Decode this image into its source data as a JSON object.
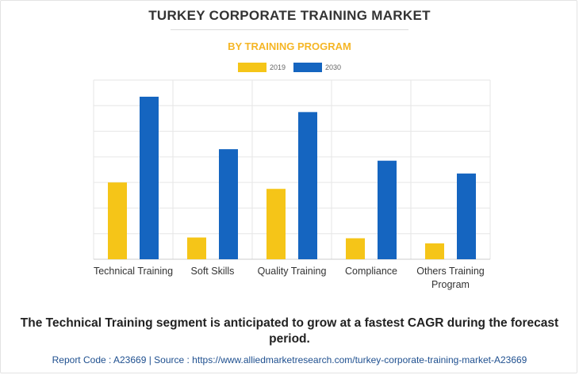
{
  "header": {
    "title": "TURKEY CORPORATE TRAINING MARKET",
    "subtitle": "BY TRAINING PROGRAM"
  },
  "colors": {
    "series_2019": "#f5c518",
    "series_2030": "#1565c0",
    "subtitle": "#f5b626"
  },
  "chart_data": {
    "type": "bar",
    "title": "TURKEY CORPORATE TRAINING MARKET",
    "subtitle": "BY TRAINING PROGRAM",
    "xlabel": "",
    "ylabel": "",
    "categories": [
      "Technical Training",
      "Soft Skills",
      "Quality Training",
      "Compliance",
      "Others Training Program"
    ],
    "category_lines": [
      [
        "Technical Training"
      ],
      [
        "Soft Skills"
      ],
      [
        "Quality Training"
      ],
      [
        "Compliance"
      ],
      [
        "Others Training",
        "Program"
      ]
    ],
    "series": [
      {
        "name": "2019",
        "values": [
          30,
          8.5,
          27.5,
          8.2,
          6.2
        ]
      },
      {
        "name": "2030",
        "values": [
          63.5,
          43,
          57.5,
          38.5,
          33.5
        ]
      }
    ],
    "ylim": [
      0,
      70
    ],
    "y_gridlines": [
      10,
      20,
      30,
      40,
      50,
      60,
      70
    ],
    "grid": true,
    "legend_position": "top-center"
  },
  "caption": "The Technical Training segment is anticipated to grow at a fastest CAGR during the forecast period.",
  "footer": "Report Code : A23669  |  Source : https://www.alliedmarketresearch.com/turkey-corporate-training-market-A23669"
}
